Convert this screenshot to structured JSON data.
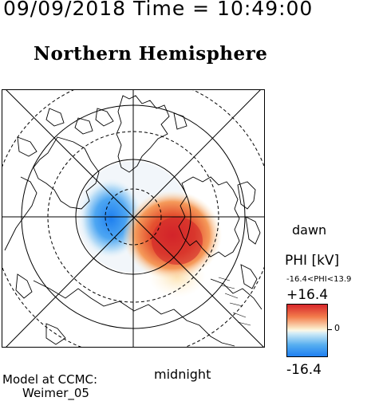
{
  "header": {
    "timestamp": "09/09/2018 Time = 10:49:00",
    "title": "Northern Hemisphere"
  },
  "map": {
    "dawn_label": "dawn",
    "midnight_label": "midnight",
    "colors": {
      "positive": "#d7262b",
      "negative": "#1e7ff0",
      "neutral": "#fbf7e8",
      "lines": "#000000"
    }
  },
  "legend": {
    "title": "PHI [kV]",
    "range": "-16.4<PHI<13.9",
    "max": "+16.4",
    "min": "-16.4",
    "zero": "0"
  },
  "credits": {
    "line1": "Model at CCMC:",
    "line2": "Weimer_05"
  }
}
